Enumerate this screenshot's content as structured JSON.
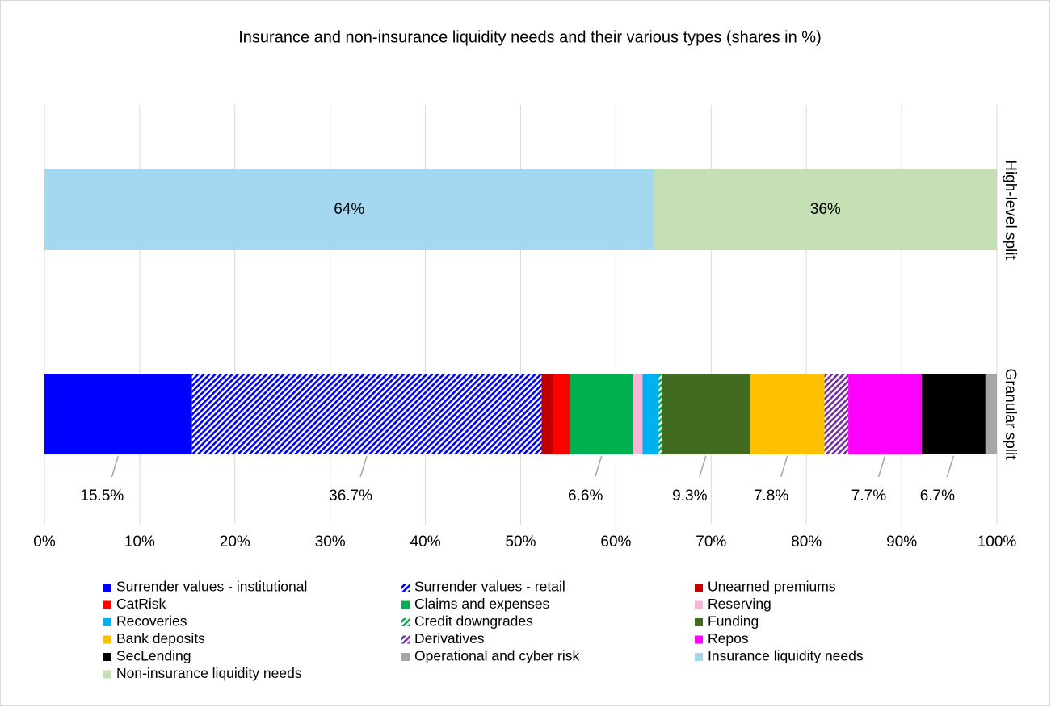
{
  "chart_data": {
    "type": "stacked-barh",
    "title": "Insurance and non-insurance liquidity needs and their various types (shares in %)",
    "categories": [
      "High-level split",
      "Granular split"
    ],
    "xlim": [
      0,
      100
    ],
    "xticks": [
      {
        "value": 0,
        "label": "0%"
      },
      {
        "value": 10,
        "label": "10%"
      },
      {
        "value": 20,
        "label": "20%"
      },
      {
        "value": 30,
        "label": "30%"
      },
      {
        "value": 40,
        "label": "40%"
      },
      {
        "value": 50,
        "label": "50%"
      },
      {
        "value": 60,
        "label": "60%"
      },
      {
        "value": 70,
        "label": "70%"
      },
      {
        "value": 80,
        "label": "80%"
      },
      {
        "value": 90,
        "label": "90%"
      },
      {
        "value": 100,
        "label": "100%"
      }
    ],
    "grid": true,
    "legend": "bottom",
    "series": [
      {
        "name": "Surrender values - institutional",
        "color": "#0000ff",
        "values": [
          null,
          15.5
        ],
        "value_labels": [
          null,
          "15.5%"
        ]
      },
      {
        "name": "Surrender values - retail",
        "color": "#0000ff",
        "hatch": true,
        "values": [
          null,
          36.7
        ],
        "value_labels": [
          null,
          "36.7%"
        ]
      },
      {
        "name": "Unearned premiums",
        "color": "#c00000",
        "values": [
          null,
          1.2
        ]
      },
      {
        "name": "CatRisk",
        "color": "#ff0000",
        "values": [
          null,
          1.8
        ]
      },
      {
        "name": "Claims and expenses",
        "color": "#00b050",
        "values": [
          null,
          6.6
        ],
        "value_labels": [
          null,
          "6.6%"
        ]
      },
      {
        "name": "Reserving",
        "color": "#f7b6d9",
        "values": [
          null,
          1.0
        ]
      },
      {
        "name": "Recoveries",
        "color": "#00b0f0",
        "values": [
          null,
          1.7
        ]
      },
      {
        "name": "Credit downgrades",
        "color": "#00b050",
        "hatch": true,
        "values": [
          null,
          0.3
        ]
      },
      {
        "name": "Funding",
        "color": "#426b22",
        "values": [
          null,
          9.3
        ],
        "value_labels": [
          null,
          "9.3%"
        ]
      },
      {
        "name": "Bank deposits",
        "color": "#ffc000",
        "values": [
          null,
          7.8
        ],
        "value_labels": [
          null,
          "7.8%"
        ]
      },
      {
        "name": "Derivatives",
        "color": "#7030a0",
        "hatch": true,
        "values": [
          null,
          2.5
        ]
      },
      {
        "name": "Repos",
        "color": "#ff00ff",
        "values": [
          null,
          7.7
        ],
        "value_labels": [
          null,
          "7.7%"
        ]
      },
      {
        "name": "SecLending",
        "color": "#000000",
        "values": [
          null,
          6.7
        ],
        "value_labels": [
          null,
          "6.7%"
        ]
      },
      {
        "name": "Operational and cyber risk",
        "color": "#a6a6a6",
        "values": [
          null,
          1.2
        ]
      },
      {
        "name": "Insurance liquidity needs",
        "color": "#a3d8f0",
        "values": [
          64,
          null
        ],
        "value_labels": [
          "64%",
          null
        ]
      },
      {
        "name": "Non-insurance liquidity needs",
        "color": "#c5e0b4",
        "values": [
          36,
          null
        ],
        "value_labels": [
          "36%",
          null
        ]
      }
    ]
  }
}
